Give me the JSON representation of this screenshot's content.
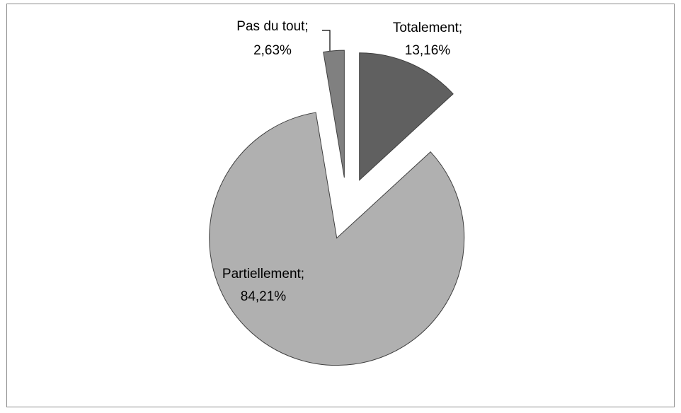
{
  "chart_data": {
    "type": "pie",
    "categories": [
      "Totalement;",
      "Partiellement;",
      "Pas du tout;"
    ],
    "values": [
      13.16,
      84.21,
      2.63
    ],
    "value_labels": [
      "13,16%",
      "84,21%",
      "2,63%"
    ],
    "colors": [
      "#606060",
      "#b0b0b0",
      "#808080"
    ],
    "start_angle": 0,
    "direction": "clockwise",
    "exploded": true
  }
}
